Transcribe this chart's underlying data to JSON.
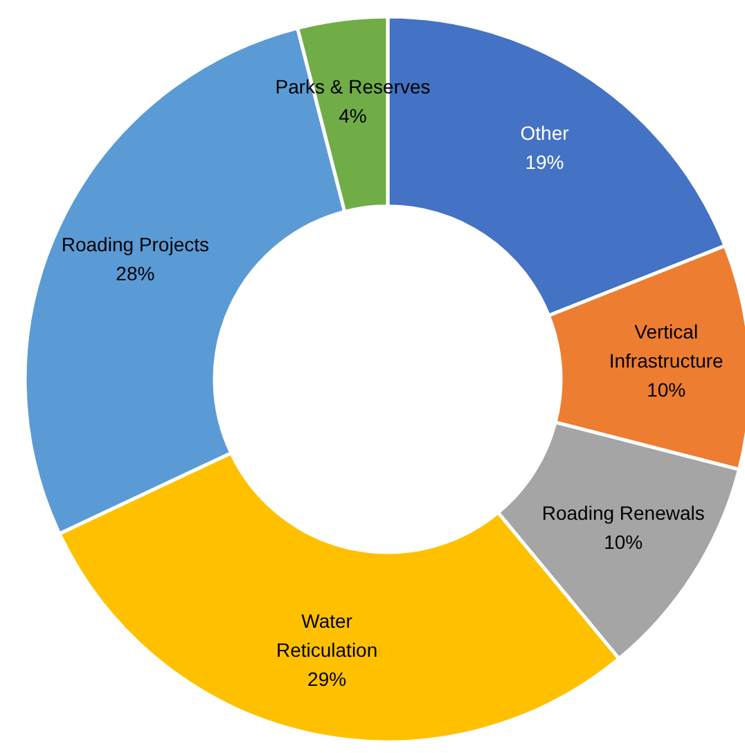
{
  "chart_data": {
    "type": "donut",
    "categories": [
      "Other",
      "Vertical Infrastructure",
      "Roading Renewals",
      "Water Reticulation",
      "Roading Projects",
      "Parks & Reserves"
    ],
    "values": [
      19,
      10,
      10,
      29,
      28,
      4
    ],
    "value_labels": [
      "19%",
      "10%",
      "10%",
      "29%",
      "28%",
      "4%"
    ],
    "colors": [
      "#4472c4",
      "#ed7d31",
      "#a5a5a5",
      "#ffc000",
      "#5b9bd5",
      "#70ad47"
    ]
  }
}
